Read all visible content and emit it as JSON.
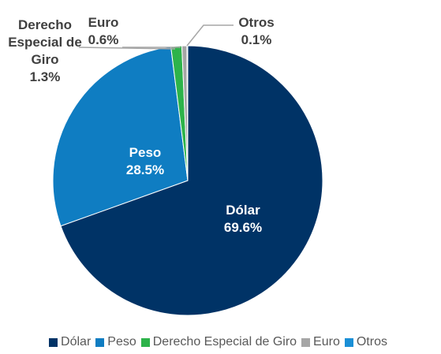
{
  "chart_data": {
    "type": "pie",
    "categories": [
      "Dólar",
      "Peso",
      "Derecho Especial de Giro",
      "Euro",
      "Otros"
    ],
    "values": [
      69.6,
      28.5,
      1.3,
      0.6,
      0.1
    ],
    "value_labels": [
      "69.6%",
      "28.5%",
      "1.3%",
      "0.6%",
      "0.1%"
    ],
    "colors": [
      "#003366",
      "#0f7dc2",
      "#2db34a",
      "#a6a6a6",
      "#1a8fd6"
    ],
    "legend": "bottom"
  }
}
